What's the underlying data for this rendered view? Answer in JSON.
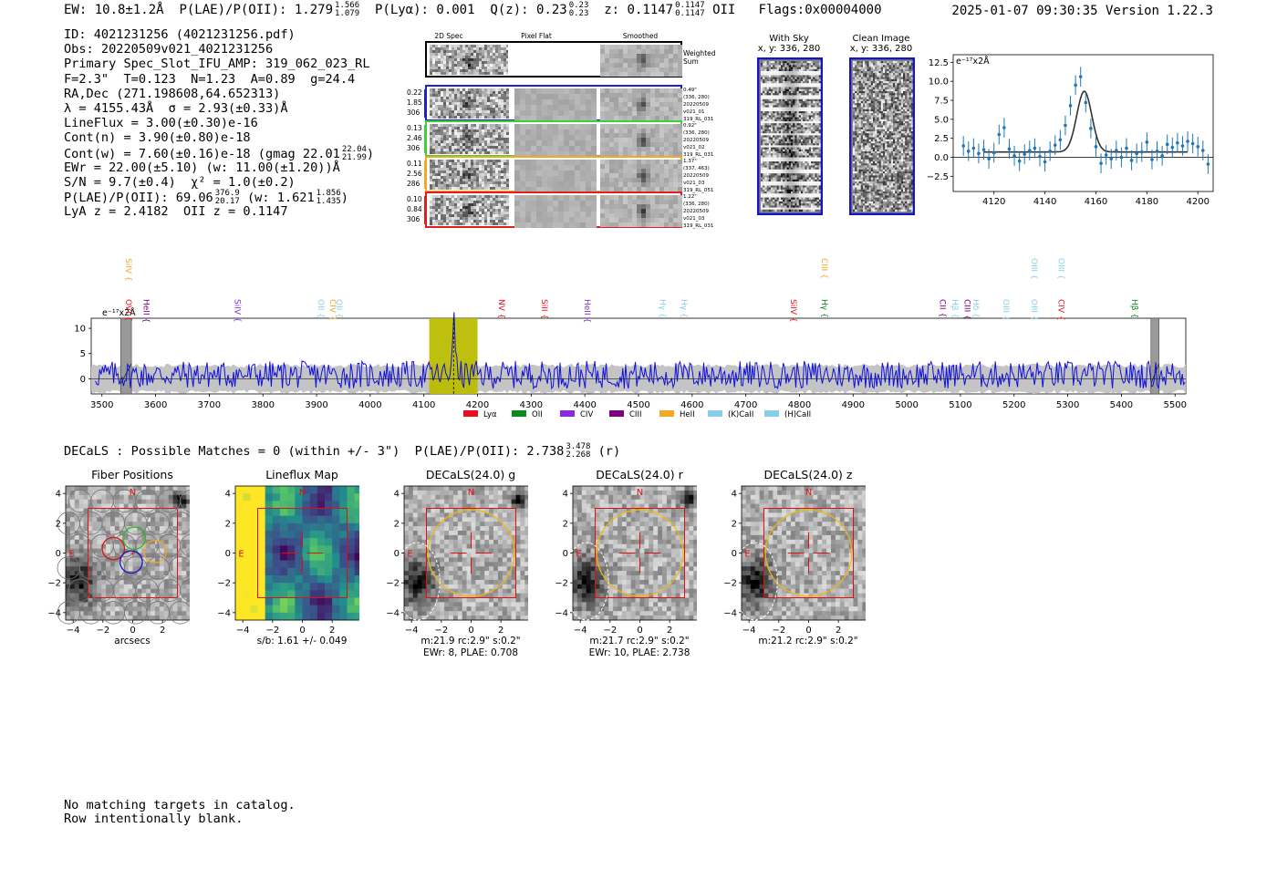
{
  "header": {
    "ew": "EW: 10.8±1.2Å",
    "plae_oii": "P(LAE)/P(OII): 1.279",
    "plae_oii_hi": "1.566",
    "plae_oii_lo": "1.079",
    "plya": "P(Lyα): 0.001",
    "qz": "Q(z): 0.23",
    "qz_hi": "0.23",
    "qz_lo": "0.23",
    "z": "z: 0.1147",
    "z_hi": "0.1147",
    "z_lo": "0.1147",
    "z_line": "OII",
    "flags": "Flags:0x00004000",
    "timestamp": "2025-01-07 09:30:35",
    "version": "Version 1.22.3"
  },
  "info": {
    "id": "ID: 4021231256 (4021231256.pdf)",
    "obs": "Obs: 20220509v021_4021231256",
    "slot": "Primary Spec_Slot_IFU_AMP: 319_062_023_RL",
    "params": "F=2.3\"  T=0.123  N=1.23  A=0.89  g=24.4",
    "radec": "RA,Dec (271.198608,64.652313)",
    "lambda": "λ = 4155.43Å  σ = 2.93(±0.33)Å",
    "lineflux": "LineFlux = 3.00(±0.30)e-16",
    "contn": "Cont(n) = 3.90(±0.80)e-18",
    "contw": "Cont(w) = 7.60(±0.16)e-18 (gmag 22.01",
    "contw_hi": "22.04",
    "contw_lo": "21.99",
    "ewr": "EWr = 22.00(±5.10) (w: 11.00(±1.20))Å",
    "sn": "S/N = 9.7(±0.4)  χ² = 1.0(±0.2)",
    "plae": "P(LAE)/P(OII): 69.06",
    "plae_hi": "376.9",
    "plae_lo": "20.17",
    "plae_w": "(w: 1.621",
    "plae_w_hi": "1.856",
    "plae_w_lo": "1.435",
    "lyaz": "LyA z = 2.4182  OII z = 0.1147"
  },
  "cutouts2d": {
    "col_titles": [
      "2D Spec",
      "Pixel Flat",
      "Smoothed"
    ],
    "weighted_label": "Weighted\nSum",
    "rows": [
      {
        "left": [
          "0.22",
          "1.85",
          "306"
        ],
        "right": [
          "0.49\"",
          "(336, 280)",
          "20220509",
          "v021_01",
          "319_RL_031"
        ],
        "color": "#1f1fd0"
      },
      {
        "left": [
          "0.13",
          "2.46",
          "306"
        ],
        "right": [
          "0.92\"",
          "(336, 280)",
          "20220509",
          "v021_02",
          "319_RL_031"
        ],
        "color": "#3bd13b"
      },
      {
        "left": [
          "0.11",
          "2.56",
          "286"
        ],
        "right": [
          "1.37\"",
          "(337, 463)",
          "20220509",
          "v021_03",
          "319_RL_051"
        ],
        "color": "#f5a623"
      },
      {
        "left": [
          "0.10",
          "0.84",
          "306"
        ],
        "right": [
          "1.22\"",
          "(336, 280)",
          "20220509",
          "v021_03",
          "319_RL_031"
        ],
        "color": "#e0201a"
      }
    ]
  },
  "sky": {
    "with_sky_title": "With Sky",
    "with_sky_xy": "x, y: 336, 280",
    "clean_title": "Clean Image",
    "clean_xy": "x, y: 336, 280"
  },
  "zoom_chart": {
    "ylabel": "e⁻¹⁷x2Å",
    "yticks": [
      "12.5",
      "10.0",
      "7.5",
      "5.0",
      "2.5",
      "0.0",
      "−2.5"
    ],
    "xticks": [
      "4120",
      "4140",
      "4160",
      "4180",
      "4200"
    ]
  },
  "chart_data": [
    {
      "type": "scatter",
      "title": "",
      "ylabel": "e⁻¹⁷x2Å",
      "xlim": [
        4104,
        4206
      ],
      "ylim": [
        -4.5,
        13.5
      ],
      "x": [
        4108,
        4110,
        4112,
        4114,
        4116,
        4118,
        4120,
        4122,
        4124,
        4126,
        4128,
        4130,
        4132,
        4134,
        4136,
        4138,
        4140,
        4142,
        4144,
        4146,
        4148,
        4150,
        4152,
        4154,
        4156,
        4158,
        4160,
        4162,
        4164,
        4166,
        4168,
        4170,
        4172,
        4174,
        4176,
        4178,
        4180,
        4182,
        4184,
        4186,
        4188,
        4190,
        4192,
        4194,
        4196,
        4198,
        4200,
        4202,
        4204
      ],
      "y": [
        1.5,
        0.8,
        1.2,
        0.5,
        1.0,
        -0.2,
        0.6,
        3.0,
        3.9,
        1.1,
        0.2,
        -0.5,
        0.4,
        0.9,
        1.2,
        0.1,
        -0.6,
        0.8,
        1.6,
        2.3,
        4.2,
        6.8,
        9.5,
        10.6,
        7.2,
        3.8,
        1.4,
        -0.8,
        0.3,
        -0.2,
        0.9,
        0.0,
        1.2,
        -0.4,
        0.5,
        0.7,
        2.0,
        -0.3,
        0.8,
        0.2,
        1.7,
        1.3,
        1.9,
        1.5,
        2.1,
        1.8,
        1.4,
        0.9,
        -0.9
      ],
      "yerr": 1.3,
      "model": {
        "center": 4155.43,
        "sigma": 2.93,
        "amplitude": 8.0,
        "continuum": 0.7
      }
    },
    {
      "type": "line",
      "title": "",
      "ylabel": "e⁻¹⁷x2Å",
      "xlim": [
        3480,
        5520
      ],
      "ylim": [
        -3,
        12
      ],
      "xticks": [
        3500,
        3600,
        3700,
        3800,
        3900,
        4000,
        4100,
        4200,
        4300,
        4400,
        4500,
        4600,
        4700,
        4800,
        4900,
        5000,
        5100,
        5200,
        5300,
        5400,
        5500
      ],
      "yticks": [
        0,
        5,
        10
      ],
      "highlight_range": [
        4110,
        4200
      ],
      "line_center": 4155.43,
      "masked_ranges": [
        [
          3535,
          3555
        ],
        [
          5455,
          5470
        ]
      ],
      "peak_value": 10.5,
      "legend": [
        {
          "label": "Lyα",
          "color": "#e8101a"
        },
        {
          "label": "OII",
          "color": "#0a8a1a"
        },
        {
          "label": "CIV",
          "color": "#8a2be2"
        },
        {
          "label": "CIII",
          "color": "#800080"
        },
        {
          "label": "HeII",
          "color": "#f5a623"
        },
        {
          "label": "(K)CaII",
          "color": "#87ceeb"
        },
        {
          "label": "(H)CaII",
          "color": "#87ceeb"
        }
      ],
      "line_markers": [
        {
          "label": "SiIV",
          "x": 3545,
          "row": 0,
          "color": "#f5a623"
        },
        {
          "label": "OVI",
          "x": 3545,
          "row": 1,
          "color": "#e8101a"
        },
        {
          "label": "HeII",
          "x": 3578,
          "row": 1,
          "color": "#800080"
        },
        {
          "label": "SiIV",
          "x": 3748,
          "row": 1,
          "color": "#8a2be2"
        },
        {
          "label": "OII",
          "x": 3903,
          "row": 1,
          "color": "#87ceeb"
        },
        {
          "label": "CIV",
          "x": 3925,
          "row": 1,
          "color": "#f5a623"
        },
        {
          "label": "OII",
          "x": 3937,
          "row": 1,
          "color": "#87ceeb"
        },
        {
          "label": "NV",
          "x": 4240,
          "row": 1,
          "color": "#e8101a"
        },
        {
          "label": "SiII",
          "x": 4320,
          "row": 1,
          "color": "#e8101a"
        },
        {
          "label": "HeII",
          "x": 4400,
          "row": 1,
          "color": "#8a2be2"
        },
        {
          "label": "Hγ",
          "x": 4540,
          "row": 1,
          "color": "#87ceeb"
        },
        {
          "label": "Hγ",
          "x": 4580,
          "row": 1,
          "color": "#87ceeb"
        },
        {
          "label": "SiIV",
          "x": 4784,
          "row": 1,
          "color": "#e8101a"
        },
        {
          "label": "CIII",
          "x": 4842,
          "row": 0,
          "color": "#f5a623"
        },
        {
          "label": "Hγ",
          "x": 4842,
          "row": 1,
          "color": "#0a8a1a"
        },
        {
          "label": "CII",
          "x": 5062,
          "row": 1,
          "color": "#800080"
        },
        {
          "label": "Hβ",
          "x": 5085,
          "row": 1,
          "color": "#87ceeb"
        },
        {
          "label": "CIII",
          "x": 5108,
          "row": 1,
          "color": "#800080"
        },
        {
          "label": "Hδ",
          "x": 5124,
          "row": 1,
          "color": "#87ceeb"
        },
        {
          "label": "OIII",
          "x": 5180,
          "row": 1,
          "color": "#87ceeb"
        },
        {
          "label": "OIII",
          "x": 5233,
          "row": 0,
          "color": "#87ceeb"
        },
        {
          "label": "OIII",
          "x": 5233,
          "row": 1,
          "color": "#87ceeb"
        },
        {
          "label": "OIII",
          "x": 5283,
          "row": 0,
          "color": "#87ceeb"
        },
        {
          "label": "CIV",
          "x": 5283,
          "row": 1,
          "color": "#e8101a"
        },
        {
          "label": "Hβ",
          "x": 5420,
          "row": 1,
          "color": "#0a8a1a"
        }
      ]
    }
  ],
  "decals": {
    "header": "DECaLS : Possible Matches = 0 (within +/- 3\")  P(LAE)/P(OII): 2.738",
    "header_hi": "3.478",
    "header_lo": "2.268",
    "header_band": "(r)",
    "panels": [
      {
        "title": "Fiber Positions",
        "caption": [
          "arcsecs"
        ]
      },
      {
        "title": "Lineflux Map",
        "caption": [
          "s/b: 1.61 +/- 0.049"
        ]
      },
      {
        "title": "DECaLS(24.0) g",
        "caption": [
          "m:21.9 rc:2.9\"  s:0.2\"",
          "EWr: 8, PLAE: 0.708"
        ]
      },
      {
        "title": "DECaLS(24.0) r",
        "caption": [
          "m:21.7 rc:2.9\"  s:0.2\"",
          "EWr: 10, PLAE: 2.738"
        ]
      },
      {
        "title": "DECaLS(24.0) z",
        "caption": [
          "m:21.2 rc:2.9\"  s:0.2\""
        ]
      }
    ],
    "compass_n": "N",
    "compass_e": "E",
    "xticks": [
      "−4",
      "−2",
      "0",
      "2",
      "4"
    ],
    "yticks": [
      "4",
      "2",
      "0",
      "−2",
      "−4"
    ]
  },
  "footer": {
    "line1": "No matching targets in catalog.",
    "line2": "Row intentionally blank."
  }
}
